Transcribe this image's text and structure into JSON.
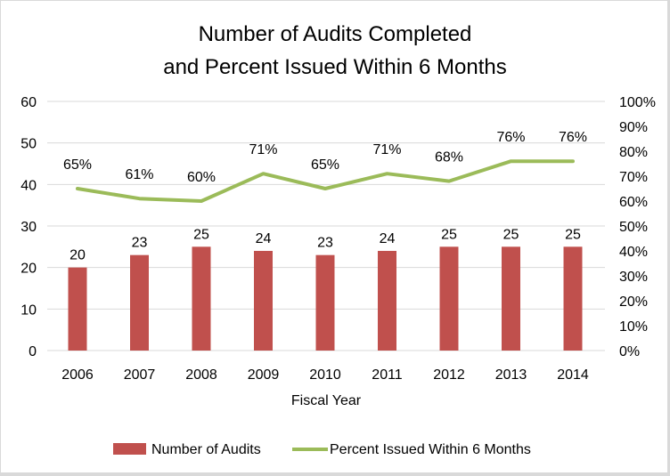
{
  "chart_data": {
    "type": "bar+line",
    "title_lines": [
      "Number of Audits Completed",
      "and Percent Issued Within 6 Months"
    ],
    "xlabel": "Fiscal Year",
    "ylabel_left": "",
    "ylabel_right": "",
    "categories": [
      "2006",
      "2007",
      "2008",
      "2009",
      "2010",
      "2011",
      "2012",
      "2013",
      "2014"
    ],
    "series": [
      {
        "name": "Number of Audits",
        "type": "bar",
        "axis": "left",
        "color": "#c0504d",
        "values": [
          20,
          23,
          25,
          24,
          23,
          24,
          25,
          25,
          25
        ],
        "labels": [
          "20",
          "23",
          "25",
          "24",
          "23",
          "24",
          "25",
          "25",
          "25"
        ]
      },
      {
        "name": "Percent Issued Within 6 Months",
        "type": "line",
        "axis": "right",
        "color": "#9bbb59",
        "values": [
          65,
          61,
          60,
          71,
          65,
          71,
          68,
          76,
          76
        ],
        "labels": [
          "65%",
          "61%",
          "60%",
          "71%",
          "65%",
          "71%",
          "68%",
          "76%",
          "76%"
        ]
      }
    ],
    "left_axis": {
      "min": 0,
      "max": 60,
      "step": 10,
      "ticks": [
        "0",
        "10",
        "20",
        "30",
        "40",
        "50",
        "60"
      ]
    },
    "right_axis": {
      "min": 0,
      "max": 100,
      "step": 10,
      "ticks": [
        "0%",
        "10%",
        "20%",
        "30%",
        "40%",
        "50%",
        "60%",
        "70%",
        "80%",
        "90%",
        "100%"
      ]
    },
    "grid": true,
    "gridline_color": "#d9d9d9",
    "legend_position": "bottom"
  }
}
